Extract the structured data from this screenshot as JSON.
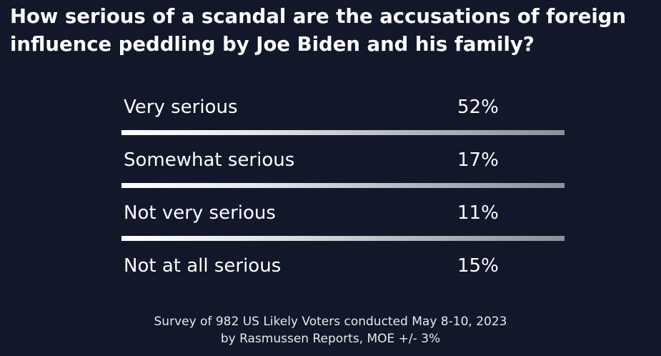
{
  "title": "How serious of a scandal are the accusations of foreign influence peddling by Joe Biden and his family?",
  "footer": {
    "line1": "Survey of 982 US Likely Voters conducted May 8-10, 2023",
    "line2": "by Rasmussen Reports, MOE +/- 3%"
  },
  "colors": {
    "background": "#12172a",
    "text": "#ffffff",
    "divider_start": "#ffffff",
    "divider_end": "#8c909a"
  },
  "chart_data": {
    "type": "table",
    "title": "How serious of a scandal are the accusations of foreign influence peddling by Joe Biden and his family?",
    "categories": [
      "Very serious",
      "Somewhat serious",
      "Not very serious",
      "Not at all serious"
    ],
    "values": [
      52,
      17,
      11,
      15
    ],
    "value_labels": [
      "52%",
      "17%",
      "11%",
      "15%"
    ]
  }
}
